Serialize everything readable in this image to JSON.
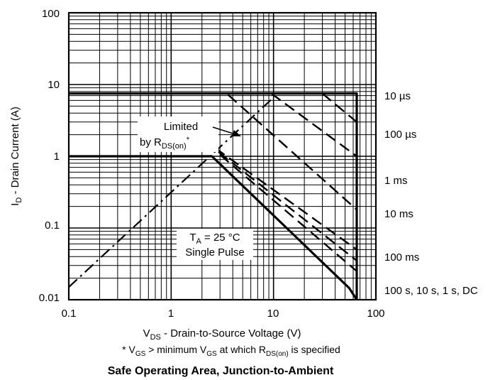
{
  "chart_data": {
    "type": "line",
    "x_scale": "log",
    "y_scale": "log",
    "xlim": [
      0.1,
      100
    ],
    "ylim": [
      0.01,
      100
    ],
    "grid": true,
    "x_ticks": [
      "0.1",
      "1",
      "10",
      "100"
    ],
    "y_ticks": [
      "0.01",
      "0.1",
      "1",
      "10",
      "100"
    ],
    "xlabel": {
      "main": "V",
      "sub": "DS",
      "rest": " - Drain-to-Source Voltage (V)"
    },
    "ylabel": {
      "main": "I",
      "sub": "D",
      "rest": " - Drain Current (A)"
    },
    "footnote": {
      "p1": "* V",
      "s1": "GS",
      "p2": " > minimum V",
      "s2": "GS",
      "p3": " at which R",
      "s3": "DS(on)",
      "p4": " is specified"
    },
    "caption": "Safe Operating Area, Junction-to-Ambient",
    "annotations": {
      "rds_limit": {
        "l1": "Limited",
        "l2a": "by R",
        "l2b": "DS(on)",
        "l2c": "*"
      },
      "conditions": {
        "l1a": "T",
        "l1b": "A",
        "l1c": " = 25 °C",
        "l2": "Single Pulse"
      }
    },
    "series": [
      {
        "name": "Limited by RDS(on)*",
        "style": "dashdot",
        "width": 2.2,
        "points": [
          [
            0.1,
            0.015
          ],
          [
            10,
            6.6
          ]
        ]
      },
      {
        "name": "10 µs",
        "style": "solid",
        "width": 3.2,
        "points": [
          [
            0.1,
            7.5
          ],
          [
            65,
            7.5
          ],
          [
            65,
            0.01
          ]
        ]
      },
      {
        "name": "100 µs",
        "style": "dashed",
        "width": 2.4,
        "points": [
          [
            9.5,
            7.5
          ],
          [
            65,
            1.0
          ],
          [
            65,
            0.01
          ]
        ]
      },
      {
        "name": "1 ms",
        "style": "dashed",
        "width": 2.4,
        "points": [
          [
            2.7,
            1.3
          ],
          [
            65,
            0.05
          ],
          [
            65,
            0.01
          ]
        ]
      },
      {
        "name": "10 ms",
        "style": "dashed",
        "width": 2.4,
        "points": [
          [
            2.9,
            1.15
          ],
          [
            65,
            0.035
          ],
          [
            65,
            0.01
          ]
        ]
      },
      {
        "name": "100 ms",
        "style": "dashed",
        "width": 2.4,
        "points": [
          [
            3.0,
            1.05
          ],
          [
            65,
            0.025
          ],
          [
            65,
            0.01
          ]
        ]
      },
      {
        "name": "100 s, 10 s, 1 s, DC",
        "style": "solid",
        "width": 3.2,
        "points": [
          [
            0.1,
            1.0
          ],
          [
            2.5,
            1.0
          ],
          [
            55,
            0.0145
          ],
          [
            65,
            0.01
          ]
        ]
      }
    ],
    "extra_dashes": [
      {
        "style": "dashed",
        "width": 2.4,
        "points": [
          [
            30,
            7.5
          ],
          [
            65,
            3.0
          ]
        ]
      },
      {
        "style": "dashed",
        "width": 2.4,
        "points": [
          [
            3.6,
            7.2
          ],
          [
            65,
            0.18
          ]
        ]
      }
    ],
    "curve_labels": [
      "10 µs",
      "100 µs",
      "1 ms",
      "10 ms",
      "100 ms",
      "100 s, 10 s, 1 s, DC"
    ]
  }
}
